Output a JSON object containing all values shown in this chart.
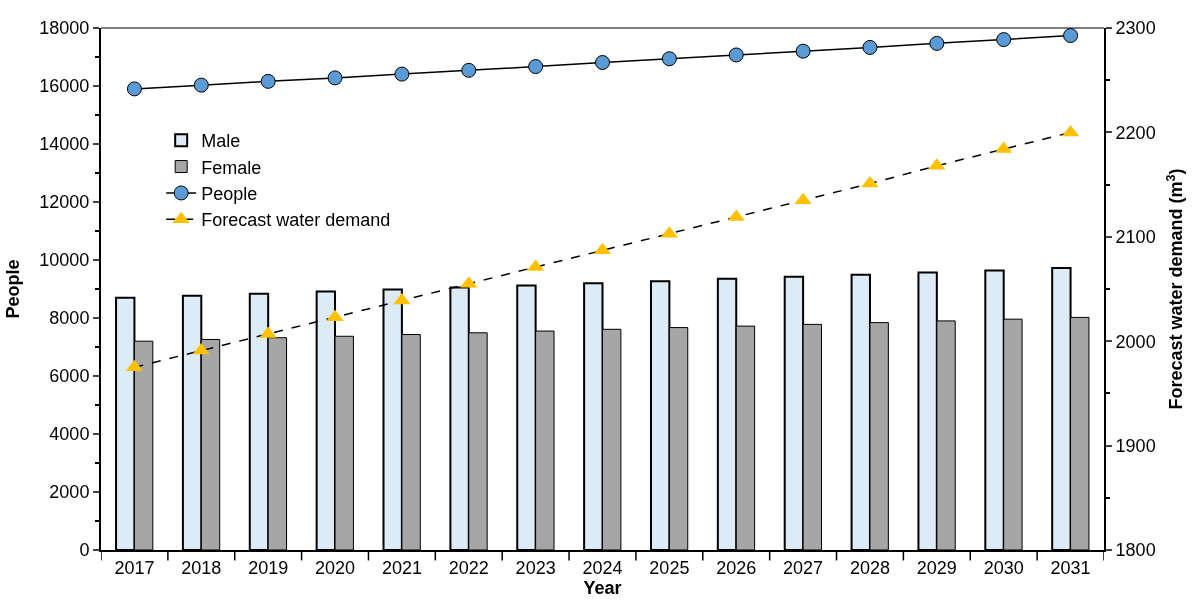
{
  "chart_data": {
    "type": "bar",
    "xlabel": "Year",
    "ylabel": "People",
    "y2label": "Forecast water demand (m$^{3}$)",
    "categories": [
      "2017",
      "2018",
      "2019",
      "2020",
      "2021",
      "2022",
      "2023",
      "2024",
      "2025",
      "2026",
      "2027",
      "2028",
      "2029",
      "2030",
      "2031"
    ],
    "series": [
      {
        "name": "Male",
        "color": "#ddebf7",
        "values": [
          8700,
          8770,
          8840,
          8910,
          8980,
          9050,
          9120,
          9200,
          9270,
          9350,
          9420,
          9490,
          9570,
          9640,
          9720
        ]
      },
      {
        "name": "Female",
        "color": "#a6a6a6",
        "values": [
          7200,
          7260,
          7320,
          7370,
          7430,
          7490,
          7550,
          7610,
          7670,
          7720,
          7780,
          7840,
          7900,
          7960,
          8020
        ]
      },
      {
        "name": "People",
        "type": "line",
        "color": "#5b9bd5",
        "marker": "circle",
        "line_style": "solid",
        "values": [
          15900,
          16030,
          16160,
          16280,
          16410,
          16540,
          16670,
          16810,
          16940,
          17070,
          17200,
          17330,
          17470,
          17600,
          17740
        ]
      },
      {
        "name": "Forecast water demand",
        "type": "line",
        "axis": "y2",
        "color": "#ffc000",
        "marker": "triangle",
        "line_style": "dashed",
        "values": [
          1975,
          1991,
          2007,
          2023,
          2039,
          2055,
          2071,
          2087,
          2103,
          2119,
          2135,
          2151,
          2168,
          2184,
          2200
        ]
      }
    ],
    "ylim": [
      0,
      18000
    ],
    "yticks": [
      0,
      2000,
      4000,
      6000,
      8000,
      10000,
      12000,
      14000,
      16000,
      18000
    ],
    "y2lim": [
      1800,
      2300
    ],
    "y2ticks": [
      1800,
      1900,
      2000,
      2100,
      2200,
      2300
    ],
    "legend": "top left"
  }
}
